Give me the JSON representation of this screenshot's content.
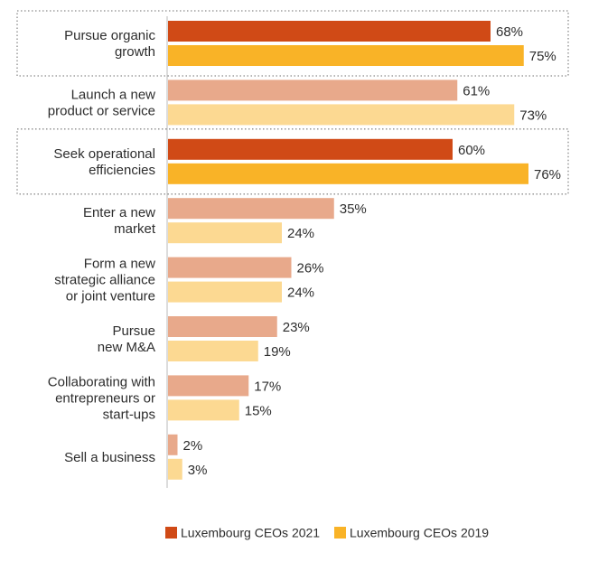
{
  "chart_data": {
    "type": "bar",
    "orientation": "horizontal",
    "categories": [
      [
        "Pursue organic",
        "growth"
      ],
      [
        "Launch a new",
        "product or service"
      ],
      [
        "Seek operational",
        "efficiencies"
      ],
      [
        "Enter a new",
        "market"
      ],
      [
        "Form a new",
        "strategic alliance",
        "or joint venture"
      ],
      [
        "Pursue",
        "new M&A"
      ],
      [
        "Collaborating with",
        "entrepreneurs or",
        "start-ups"
      ],
      [
        "Sell a business"
      ]
    ],
    "highlighted": [
      true,
      false,
      true,
      false,
      false,
      false,
      false,
      false
    ],
    "series": [
      {
        "name": "Luxembourg CEOs 2021",
        "values": [
          68,
          61,
          60,
          35,
          26,
          23,
          17,
          2
        ],
        "color": "#d04a16",
        "light_color": "#e8a98b"
      },
      {
        "name": "Luxembourg CEOs 2019",
        "values": [
          75,
          73,
          76,
          24,
          24,
          19,
          15,
          3
        ],
        "color": "#f9b327",
        "light_color": "#fcd992"
      }
    ],
    "value_suffix": "%",
    "xlim": [
      0,
      100
    ],
    "grid": false,
    "legend_position": "bottom"
  }
}
